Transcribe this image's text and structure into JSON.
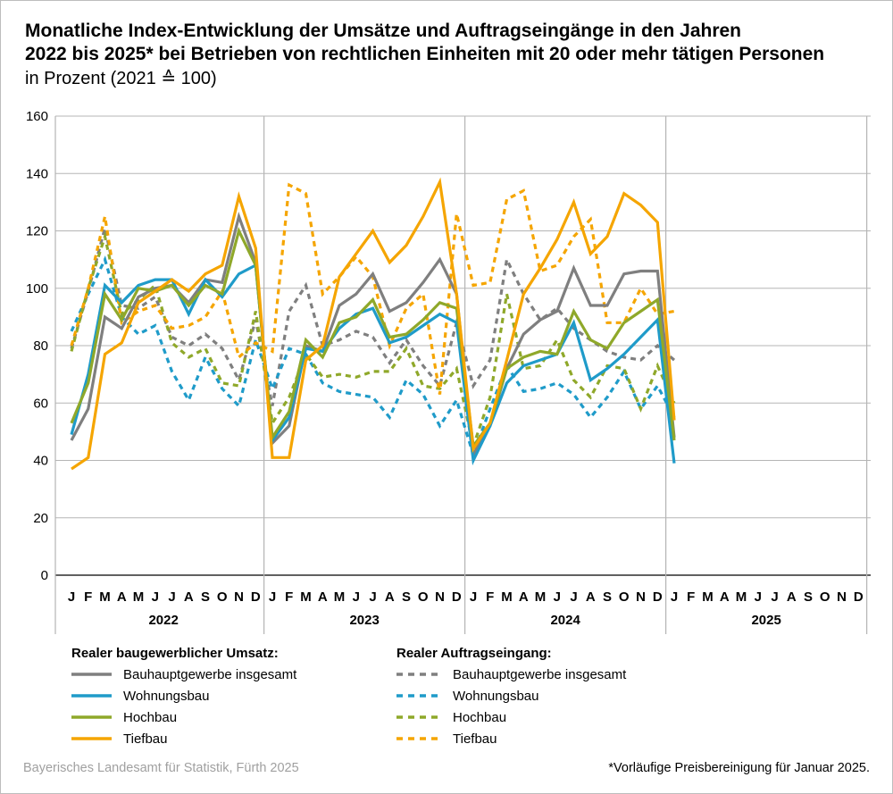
{
  "title_line1": "Monatliche Index-Entwicklung der Umsätze und Auftragseingänge in den Jahren",
  "title_line2": "2022 bis 2025* bei Betrieben von rechtlichen Einheiten mit 20 oder mehr tätigen Personen",
  "subtitle": "in Prozent (2021 ≙ 100)",
  "footer_source": "Bayerisches Landesamt für Statistik, Fürth 2025",
  "footer_note": "*Vorläufige Preisbereinigung für Januar 2025.",
  "chart_data": {
    "type": "line",
    "ylim": [
      0,
      160
    ],
    "yticks": [
      0,
      20,
      40,
      60,
      80,
      100,
      120,
      140,
      160
    ],
    "grid": true,
    "month_labels": [
      "J",
      "F",
      "M",
      "A",
      "M",
      "J",
      "J",
      "A",
      "S",
      "O",
      "N",
      "D"
    ],
    "years": [
      "2022",
      "2023",
      "2024",
      "2025"
    ],
    "legend_groups": [
      {
        "title": "Realer baugewerblicher Umsatz:",
        "style": "solid"
      },
      {
        "title": "Realer Auftragseingang:",
        "style": "dashed"
      }
    ],
    "series": [
      {
        "name": "Bauhauptgewerbe insgesamt",
        "group": 0,
        "color": "#7f7f7f",
        "values": [
          47,
          58,
          90,
          86,
          97,
          100,
          101,
          95,
          103,
          102,
          125,
          109,
          46,
          52,
          80,
          78,
          94,
          98,
          105,
          92,
          95,
          102,
          110,
          98,
          42,
          52,
          72,
          84,
          89,
          92,
          107,
          94,
          94,
          105,
          106,
          106,
          48
        ]
      },
      {
        "name": "Wohnungsbau",
        "group": 0,
        "color": "#1f9bc9",
        "values": [
          49,
          70,
          101,
          95,
          101,
          103,
          103,
          91,
          103,
          97,
          105,
          108,
          47,
          55,
          79,
          78,
          86,
          91,
          93,
          81,
          83,
          87,
          91,
          88,
          40,
          52,
          67,
          73,
          75,
          77,
          88,
          68,
          72,
          77,
          83,
          89,
          39
        ]
      },
      {
        "name": "Hochbau",
        "group": 0,
        "color": "#8fa82a",
        "values": [
          53,
          67,
          98,
          89,
          100,
          99,
          101,
          94,
          101,
          98,
          120,
          108,
          48,
          57,
          82,
          76,
          88,
          90,
          96,
          83,
          84,
          89,
          95,
          93,
          45,
          53,
          72,
          76,
          78,
          77,
          92,
          82,
          79,
          88,
          92,
          96,
          47
        ]
      },
      {
        "name": "Tiefbau",
        "group": 0,
        "color": "#f5a500",
        "values": [
          37,
          41,
          77,
          81,
          95,
          99,
          103,
          99,
          105,
          108,
          132,
          114,
          41,
          41,
          75,
          80,
          104,
          112,
          120,
          109,
          115,
          125,
          137,
          98,
          44,
          53,
          75,
          98,
          107,
          117,
          130,
          112,
          118,
          133,
          129,
          123,
          54
        ]
      },
      {
        "name": "Bauhauptgewerbe insgesamt",
        "group": 1,
        "color": "#7f7f7f",
        "values": [
          79,
          99,
          121,
          94,
          93,
          97,
          83,
          80,
          84,
          79,
          68,
          89,
          59,
          92,
          101,
          80,
          82,
          85,
          83,
          74,
          82,
          73,
          66,
          88,
          66,
          75,
          110,
          98,
          89,
          93,
          86,
          82,
          78,
          76,
          75,
          80,
          75
        ]
      },
      {
        "name": "Wohnungsbau",
        "group": 1,
        "color": "#1f9bc9",
        "values": [
          85,
          98,
          110,
          90,
          84,
          87,
          71,
          61,
          76,
          65,
          59,
          82,
          65,
          79,
          77,
          67,
          64,
          63,
          62,
          55,
          68,
          63,
          52,
          61,
          42,
          58,
          73,
          64,
          65,
          67,
          63,
          55,
          62,
          71,
          58,
          66,
          55
        ]
      },
      {
        "name": "Hochbau",
        "group": 1,
        "color": "#8fa82a",
        "values": [
          78,
          100,
          118,
          91,
          96,
          101,
          81,
          76,
          79,
          67,
          66,
          92,
          53,
          62,
          77,
          69,
          70,
          69,
          71,
          71,
          79,
          66,
          65,
          72,
          45,
          62,
          98,
          72,
          73,
          82,
          68,
          62,
          73,
          72,
          58,
          73,
          60
        ]
      },
      {
        "name": "Tiefbau",
        "group": 1,
        "color": "#f5a500",
        "values": [
          80,
          100,
          125,
          88,
          92,
          94,
          86,
          87,
          90,
          99,
          76,
          81,
          78,
          136,
          133,
          98,
          104,
          111,
          104,
          80,
          93,
          98,
          63,
          126,
          101,
          102,
          131,
          134,
          106,
          108,
          118,
          124,
          88,
          88,
          100,
          91,
          92
        ]
      }
    ]
  }
}
